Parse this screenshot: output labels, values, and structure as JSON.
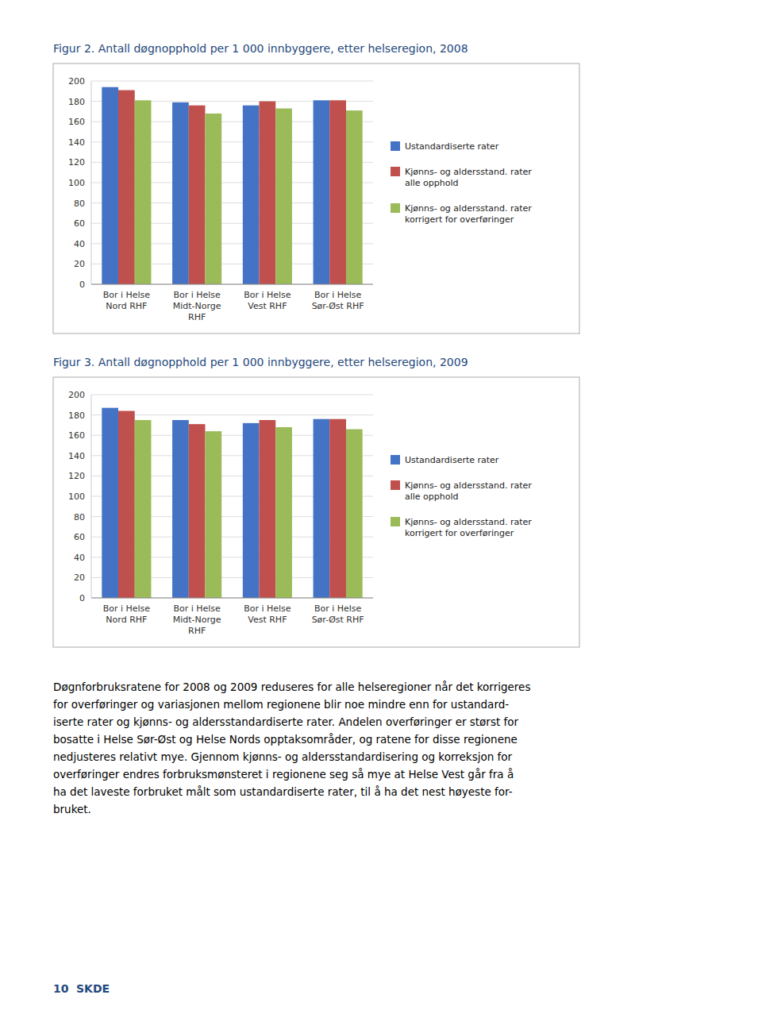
{
  "chart_data": [
    {
      "type": "bar",
      "title": "Figur 2. Antall døgnopphold per 1 000 innbyggere, etter helseregion, 2008",
      "categories": [
        "Bor i Helse\nNord RHF",
        "Bor i Helse\nMidt-Norge\nRHF",
        "Bor i Helse\nVest RHF",
        "Bor i Helse\nSør-Øst RHF"
      ],
      "series": [
        {
          "name": "Ustandardiserte rater",
          "color": "#4472C4",
          "values": [
            194,
            179,
            176,
            181
          ]
        },
        {
          "name": "Kjønns- og aldersstand. rater\nalle opphold",
          "color": "#C0504D",
          "values": [
            191,
            176,
            180,
            181
          ]
        },
        {
          "name": "Kjønns- og aldersstand. rater\nkorrigert for overføringer",
          "color": "#9BBB59",
          "values": [
            181,
            168,
            173,
            171
          ]
        }
      ],
      "ylim": [
        0,
        200
      ],
      "yticks": [
        0,
        20,
        40,
        60,
        80,
        100,
        120,
        140,
        160,
        180,
        200
      ],
      "grid": true,
      "legend": "right"
    },
    {
      "type": "bar",
      "title": "Figur 3. Antall døgnopphold per 1 000 innbyggere, etter helseregion, 2009",
      "categories": [
        "Bor i Helse\nNord RHF",
        "Bor i Helse\nMidt-Norge\nRHF",
        "Bor i Helse\nVest RHF",
        "Bor i Helse\nSør-Øst RHF"
      ],
      "series": [
        {
          "name": "Ustandardiserte rater",
          "color": "#4472C4",
          "values": [
            187,
            175,
            172,
            176
          ]
        },
        {
          "name": "Kjønns- og aldersstand. rater\nalle opphold",
          "color": "#C0504D",
          "values": [
            184,
            171,
            175,
            176
          ]
        },
        {
          "name": "Kjønns- og aldersstand. rater\nkorrigert for overføringer",
          "color": "#9BBB59",
          "values": [
            175,
            164,
            168,
            166
          ]
        }
      ],
      "ylim": [
        0,
        200
      ],
      "yticks": [
        0,
        20,
        40,
        60,
        80,
        100,
        120,
        140,
        160,
        180,
        200
      ],
      "grid": true,
      "legend": "right"
    }
  ],
  "body_lines": [
    "Døgnforbruksratene for 2008 og 2009 reduseres for alle helseregioner når det korrigeres",
    "for overføringer og variasjonen mellom regionene blir noe mindre enn for ustandard-",
    "iserte rater og kjønns- og aldersstandardiserte rater. Andelen overføringer er størst for",
    "bosatte i Helse Sør-Øst og Helse Nords opptaksområder, og ratene for disse regionene",
    "nedjusteres relativt mye. Gjennom kjønns- og aldersstandardisering og korreksjon for",
    "overføringer endres forbruksmønsteret i regionene seg så mye at Helse Vest går fra å",
    "ha det laveste forbruket målt som ustandardiserte rater, til å ha det nest høyeste for-",
    "bruket."
  ],
  "footer_number": "10",
  "footer_text": "SKDE"
}
